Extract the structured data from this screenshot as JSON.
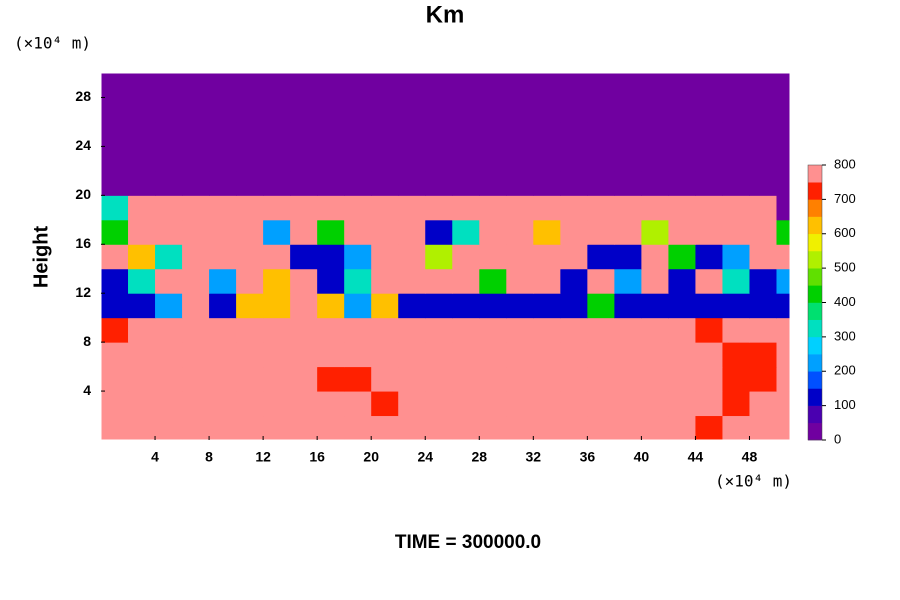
{
  "chart_data": {
    "type": "heatmap",
    "title": "Km",
    "y_unit": "(×10⁴ m)",
    "x_unit": "(×10⁴ m)",
    "ylabel": "Height",
    "footer": "TIME = 300000.0",
    "xlim": [
      0,
      51
    ],
    "ylim": [
      0,
      30
    ],
    "xticks": [
      4,
      8,
      12,
      16,
      20,
      24,
      28,
      32,
      36,
      40,
      44,
      48
    ],
    "yticks": [
      4,
      8,
      12,
      16,
      20,
      24,
      28
    ],
    "x": [
      1,
      3,
      5,
      7,
      9,
      11,
      13,
      15,
      17,
      19,
      21,
      23,
      25,
      27,
      29,
      31,
      33,
      35,
      37,
      39,
      41,
      43,
      45,
      47,
      49,
      51
    ],
    "y": [
      1,
      3,
      5,
      7,
      9,
      11,
      13,
      15,
      17,
      19,
      21,
      23,
      25,
      27,
      29
    ],
    "z": [
      [
        800,
        800,
        800,
        800,
        800,
        800,
        800,
        800,
        800,
        800,
        800,
        800,
        800,
        800,
        800,
        800,
        800,
        800,
        800,
        800,
        800,
        800,
        700,
        800,
        800,
        800
      ],
      [
        800,
        800,
        800,
        800,
        800,
        800,
        800,
        800,
        800,
        800,
        700,
        800,
        800,
        800,
        800,
        800,
        800,
        800,
        800,
        800,
        800,
        800,
        800,
        700,
        800,
        800
      ],
      [
        800,
        800,
        800,
        800,
        800,
        800,
        800,
        800,
        700,
        700,
        800,
        800,
        800,
        800,
        800,
        800,
        800,
        800,
        800,
        800,
        800,
        800,
        800,
        700,
        700,
        800
      ],
      [
        800,
        800,
        800,
        800,
        800,
        800,
        800,
        800,
        800,
        800,
        800,
        800,
        800,
        800,
        800,
        800,
        800,
        800,
        800,
        750,
        800,
        800,
        800,
        700,
        700,
        800
      ],
      [
        700,
        800,
        800,
        800,
        800,
        800,
        800,
        800,
        800,
        800,
        800,
        800,
        800,
        800,
        800,
        800,
        800,
        800,
        800,
        800,
        800,
        800,
        700,
        800,
        800,
        800
      ],
      [
        100,
        100,
        200,
        800,
        100,
        600,
        600,
        800,
        600,
        200,
        600,
        100,
        100,
        100,
        100,
        100,
        100,
        100,
        400,
        100,
        100,
        100,
        100,
        100,
        100,
        100
      ],
      [
        100,
        300,
        800,
        800,
        200,
        800,
        600,
        800,
        100,
        300,
        800,
        800,
        800,
        800,
        400,
        800,
        800,
        100,
        800,
        200,
        800,
        100,
        800,
        300,
        100,
        200
      ],
      [
        800,
        600,
        300,
        800,
        800,
        800,
        800,
        100,
        100,
        200,
        800,
        800,
        500,
        800,
        800,
        800,
        800,
        800,
        100,
        100,
        800,
        400,
        100,
        200,
        800,
        800
      ],
      [
        400,
        800,
        800,
        800,
        800,
        800,
        200,
        800,
        400,
        800,
        800,
        800,
        100,
        300,
        800,
        800,
        600,
        800,
        800,
        800,
        500,
        800,
        800,
        800,
        800,
        400
      ],
      [
        300,
        800,
        800,
        800,
        800,
        800,
        800,
        800,
        800,
        800,
        800,
        800,
        800,
        800,
        800,
        800,
        800,
        800,
        800,
        800,
        800,
        800,
        800,
        800,
        800,
        0
      ],
      [
        0,
        0,
        0,
        0,
        0,
        0,
        0,
        0,
        0,
        0,
        0,
        0,
        0,
        0,
        0,
        0,
        0,
        0,
        0,
        0,
        0,
        0,
        0,
        0,
        0,
        0
      ],
      [
        0,
        0,
        0,
        0,
        0,
        0,
        0,
        0,
        0,
        0,
        0,
        0,
        0,
        0,
        0,
        0,
        0,
        0,
        0,
        0,
        0,
        0,
        0,
        0,
        0,
        0
      ],
      [
        0,
        0,
        0,
        0,
        0,
        0,
        0,
        0,
        0,
        0,
        0,
        0,
        0,
        0,
        0,
        0,
        0,
        0,
        0,
        0,
        0,
        0,
        0,
        0,
        0,
        0
      ],
      [
        0,
        0,
        0,
        0,
        0,
        0,
        0,
        0,
        0,
        0,
        0,
        0,
        0,
        0,
        0,
        0,
        0,
        0,
        0,
        0,
        0,
        0,
        0,
        0,
        0,
        0
      ],
      [
        0,
        0,
        0,
        0,
        0,
        0,
        0,
        0,
        0,
        0,
        0,
        0,
        0,
        0,
        0,
        0,
        0,
        0,
        0,
        0,
        0,
        0,
        0,
        0,
        0,
        0
      ]
    ],
    "colorbar": {
      "lim": [
        0,
        800
      ],
      "ticks": [
        0,
        100,
        200,
        300,
        400,
        500,
        600,
        700,
        800
      ],
      "colors": [
        "#7000a0",
        "#4a00b0",
        "#0000c8",
        "#0050ff",
        "#00a0ff",
        "#00d0ff",
        "#00e0c0",
        "#00e070",
        "#00d000",
        "#60e000",
        "#b0f000",
        "#f0f000",
        "#ffc000",
        "#ff8000",
        "#ff2000",
        "#ff9090"
      ]
    }
  }
}
